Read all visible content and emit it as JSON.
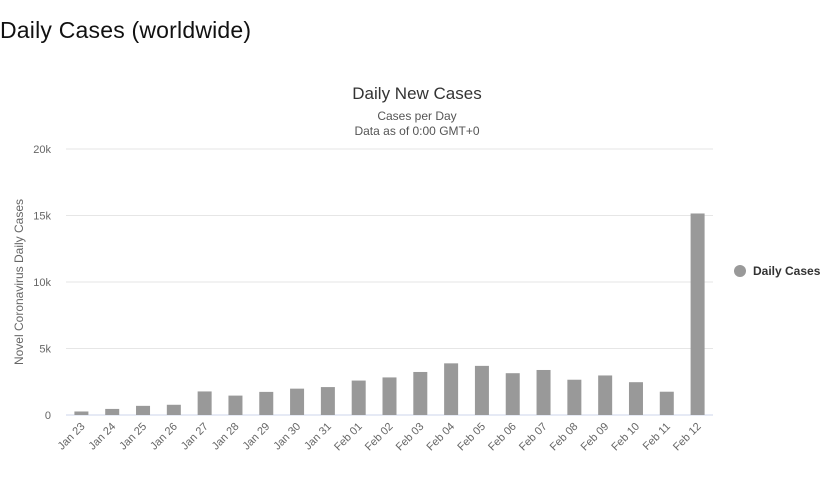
{
  "page_title": "Daily Cases (worldwide)",
  "chart_data": {
    "type": "bar",
    "title": "Daily New Cases",
    "subtitle_1": "Cases per Day",
    "subtitle_2": "Data as of 0:00 GMT+0",
    "xlabel": "",
    "ylabel": "Novel Coronavirus Daily Cases",
    "ylim": [
      0,
      20000
    ],
    "yticks": [
      0,
      5000,
      10000,
      15000,
      20000
    ],
    "ytick_labels": [
      "0",
      "5k",
      "10k",
      "15k",
      "20k"
    ],
    "grid": true,
    "legend_position": "right",
    "color": "#999999",
    "categories": [
      "Jan 23",
      "Jan 24",
      "Jan 25",
      "Jan 26",
      "Jan 27",
      "Jan 28",
      "Jan 29",
      "Jan 30",
      "Jan 31",
      "Feb 01",
      "Feb 02",
      "Feb 03",
      "Feb 04",
      "Feb 05",
      "Feb 06",
      "Feb 07",
      "Feb 08",
      "Feb 09",
      "Feb 10",
      "Feb 11",
      "Feb 12"
    ],
    "series": [
      {
        "name": "Daily Cases",
        "values": [
          265,
          457,
          688,
          769,
          1771,
          1459,
          1737,
          1981,
          2099,
          2589,
          2825,
          3235,
          3884,
          3694,
          3143,
          3385,
          2652,
          2973,
          2467,
          1750,
          15152
        ]
      }
    ]
  }
}
